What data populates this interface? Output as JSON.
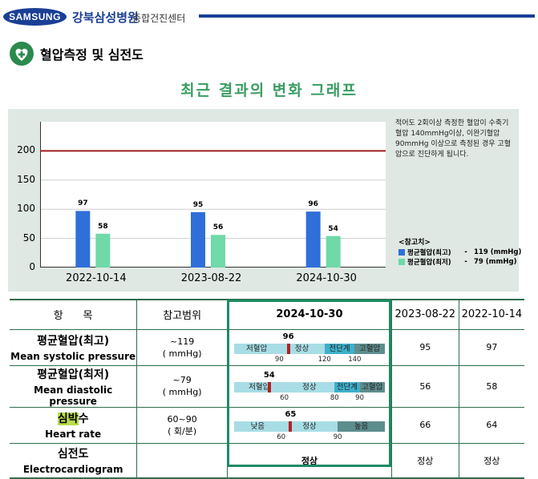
{
  "header": {
    "logo_text": "SAMSUNG",
    "hospital": "강북삼성병원",
    "center": "종합건진센터",
    "brand_color": "#1a3f95"
  },
  "section": {
    "title": "혈압측정 및 심전도",
    "icon": "heart-plus-icon"
  },
  "chart_title": "최근 결과의 변화 그래프",
  "note": "적어도 2회이상 측정한 혈압이 수축기 혈압 140mmHg이상, 이완기혈압 90mmHg 이상으로 측정된 경우 고혈압으로 진단하게 됩니다.",
  "reference": {
    "title": "<참고치>",
    "items": [
      {
        "name": "평균혈압(최고)",
        "dash": "-",
        "value": "119 (mmHg)",
        "color": "#2f6fd9"
      },
      {
        "name": "평균혈압(최저)",
        "dash": "-",
        "value": "79 (mmHg)",
        "color": "#6fd9a8"
      }
    ]
  },
  "chart_data": {
    "type": "bar",
    "title": "최근 결과의 변화 그래프",
    "categories": [
      "2022-10-14",
      "2023-08-22",
      "2024-10-30"
    ],
    "series": [
      {
        "name": "평균혈압(최고)",
        "values": [
          97,
          95,
          96
        ],
        "color": "#2f6fd9"
      },
      {
        "name": "평균혈압(최저)",
        "values": [
          58,
          56,
          54
        ],
        "color": "#6fd9a8"
      }
    ],
    "ylim": [
      0,
      250
    ],
    "yticks": [
      0,
      50,
      100,
      150,
      200
    ],
    "threshold": {
      "value": 200,
      "color": "#a01e1e"
    },
    "xlabel": "",
    "ylabel": ""
  },
  "table": {
    "headers": {
      "item": "항      목",
      "range": "참고범위",
      "current": "2024-10-30",
      "prev1": "2023-08-22",
      "prev2": "2022-10-14"
    },
    "rows": [
      {
        "name_ko": "평균혈압(최고)",
        "name_en": "Mean systolic pressure",
        "range_value": "~119",
        "range_unit": "( mmHg)",
        "current": "96",
        "prev1": "95",
        "prev2": "97",
        "gauge": {
          "min": 60,
          "max": 160,
          "segments": [
            {
              "label": "저혈압",
              "end": 90,
              "color": "#a8dde6"
            },
            {
              "label": "정상",
              "end": 120,
              "color": "#a8dde6"
            },
            {
              "label": "전단계",
              "end": 140,
              "color": "#3fb0cc"
            },
            {
              "label": "고혈압",
              "end": 160,
              "color": "#5e8d8e"
            }
          ],
          "ticks": [
            "90",
            "120",
            "140"
          ]
        }
      },
      {
        "name_ko": "평균혈압(최저)",
        "name_en": "Mean diastolic pressure",
        "range_value": "~79",
        "range_unit": "( mmHg)",
        "current": "54",
        "prev1": "56",
        "prev2": "58",
        "gauge": {
          "min": 40,
          "max": 100,
          "segments": [
            {
              "label": "저혈압",
              "end": 60,
              "color": "#a8dde6"
            },
            {
              "label": "정상",
              "end": 80,
              "color": "#a8dde6"
            },
            {
              "label": "전단계",
              "end": 90,
              "color": "#3fb0cc"
            },
            {
              "label": "고혈압",
              "end": 100,
              "color": "#5e8d8e"
            }
          ],
          "ticks": [
            "60",
            "80",
            "90"
          ]
        }
      },
      {
        "name_ko_hl": "심박",
        "name_ko_rest": "수",
        "name_en": "Heart rate",
        "range_value": "60~90",
        "range_unit": "( 회/분)",
        "current": "65",
        "prev1": "66",
        "prev2": "64",
        "gauge": {
          "min": 35,
          "max": 115,
          "segments": [
            {
              "label": "낮음",
              "end": 60,
              "color": "#a8dde6"
            },
            {
              "label": "정상",
              "end": 90,
              "color": "#a8dde6"
            },
            {
              "label": "높음",
              "end": 115,
              "color": "#5e8d8e"
            }
          ],
          "ticks": [
            "60",
            "90"
          ]
        }
      },
      {
        "name_ko": "심전도",
        "name_en": "Electrocardiogram",
        "current": "정상",
        "prev1": "정상",
        "prev2": "정상"
      }
    ]
  }
}
